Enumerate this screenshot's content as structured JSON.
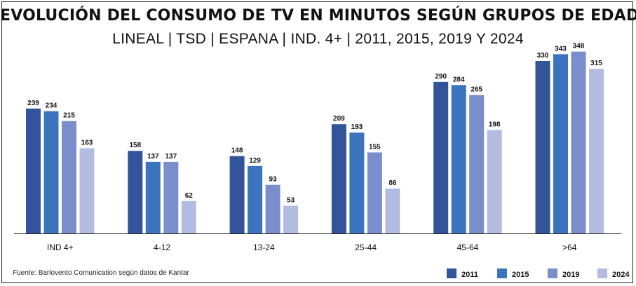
{
  "chart_data": {
    "type": "bar",
    "title": "EVOLUCIÓN DEL CONSUMO DE TV EN MINUTOS SEGÚN GRUPOS DE EDAD",
    "subtitle": "LINEAL   |  TSD   |  ESPANA   |  IND. 4+   |  2011, 2015, 2019 Y 2024",
    "categories": [
      "IND 4+",
      "4-12",
      "13-24",
      "25-44",
      "45-64",
      ">64"
    ],
    "series": [
      {
        "name": "2011",
        "color": "#33549b",
        "values": [
          239,
          158,
          148,
          209,
          290,
          330
        ]
      },
      {
        "name": "2015",
        "color": "#3b74bd",
        "values": [
          234,
          137,
          129,
          193,
          284,
          343
        ]
      },
      {
        "name": "2019",
        "color": "#7a8ecb",
        "values": [
          215,
          137,
          93,
          155,
          265,
          348
        ]
      },
      {
        "name": "2024",
        "color": "#b1bce0",
        "values": [
          163,
          62,
          53,
          86,
          198,
          315
        ]
      }
    ],
    "ylim": [
      0,
      380
    ],
    "grid": false,
    "legend_position": "bottom-right",
    "xlabel": "",
    "ylabel": ""
  },
  "source": {
    "prefix": "Fuente:",
    "text": " Barlovento Comunication según datos de Kantar"
  }
}
